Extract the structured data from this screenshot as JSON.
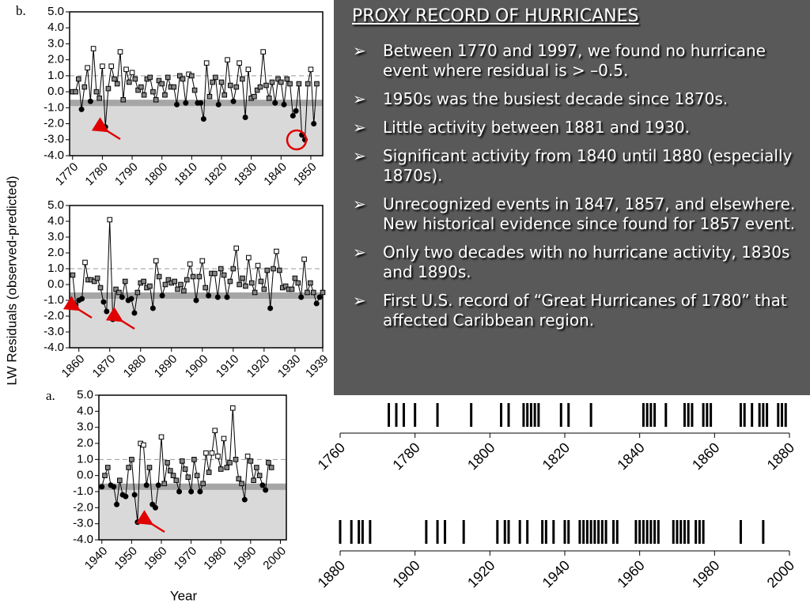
{
  "ylabel": "LW Residuals (observed-predicted)",
  "slide": {
    "title": "PROXY RECORD OF HURRICANES",
    "bullets": [
      "Between 1770 and 1997, we found no hurricane event where residual is > –0.5.",
      "1950s was the busiest decade since 1870s.",
      "Little activity between 1881 and 1930.",
      "Significant activity from 1840 until 1880 (especially 1870s).",
      "Unrecognized events in 1847, 1857, and elsewhere. New historical evidence since found for 1857 event.",
      "Only two decades with no hurricane activity, 1830s and 1890s.",
      "First U.S. record of “Great Hurricanes of 1780” that affected Caribbean region."
    ]
  },
  "chart_data": [
    {
      "type": "line",
      "panel_label": "b.",
      "color": "#000000",
      "shaded_below": -0.5,
      "reference_line": 1,
      "x": [
        1770,
        1771,
        1772,
        1773,
        1774,
        1775,
        1776,
        1777,
        1778,
        1779,
        1780,
        1781,
        1782,
        1783,
        1784,
        1785,
        1786,
        1787,
        1788,
        1789,
        1790,
        1791,
        1792,
        1793,
        1794,
        1795,
        1796,
        1797,
        1798,
        1799,
        1800,
        1801,
        1802,
        1803,
        1804,
        1805,
        1806,
        1807,
        1808,
        1809,
        1810,
        1811,
        1812,
        1813,
        1814,
        1815,
        1816,
        1817,
        1818,
        1819,
        1820,
        1821,
        1822,
        1823,
        1824,
        1825,
        1826,
        1827,
        1828,
        1829,
        1830,
        1831,
        1832,
        1833,
        1834,
        1835,
        1836,
        1837,
        1838,
        1839,
        1840,
        1841,
        1842,
        1843,
        1844,
        1845,
        1846,
        1847,
        1848,
        1849,
        1850,
        1851,
        1852
      ],
      "values": [
        0.0,
        0.0,
        0.8,
        -1.1,
        0.3,
        1.5,
        -0.6,
        2.7,
        0.0,
        -0.4,
        1.6,
        -2.2,
        0.2,
        1.6,
        0.8,
        0.5,
        2.5,
        -0.5,
        1.4,
        0.6,
        1.2,
        0.8,
        0.1,
        0.3,
        -0.2,
        0.8,
        0.9,
        0.0,
        -0.5,
        0.7,
        0.5,
        -0.2,
        0.9,
        0.3,
        0.3,
        -0.8,
        1.0,
        0.8,
        -0.7,
        1.1,
        1.0,
        0.1,
        -0.7,
        -0.7,
        -1.7,
        1.8,
        -0.3,
        0.6,
        0.9,
        -0.8,
        0.6,
        -0.2,
        2.0,
        0.4,
        -0.6,
        0.3,
        1.8,
        0.8,
        -1.6,
        1.4,
        -0.4,
        -0.3,
        0.1,
        0.3,
        2.5,
        0.4,
        -0.4,
        0.6,
        -0.7,
        0.8,
        0.6,
        -0.8,
        0.8,
        0.5,
        -1.5,
        -1.2,
        0.5,
        -2.7,
        -3.0,
        0.5,
        1.4,
        -2.0,
        0.5
      ],
      "xlim": [
        1769,
        1854
      ],
      "ylim": [
        -4,
        5
      ],
      "xticks": [
        1770,
        1780,
        1790,
        1800,
        1810,
        1820,
        1830,
        1840,
        1850
      ],
      "yticks": [
        {
          "value": 5,
          "label": "5.0"
        },
        {
          "value": 4,
          "label": "4.0"
        },
        {
          "value": 3,
          "label": "3.0"
        },
        {
          "value": 2,
          "label": "2.0"
        },
        {
          "value": 1,
          "label": "1.0"
        },
        {
          "value": 0,
          "label": "0.0"
        },
        {
          "value": -1,
          "label": "-1.0"
        },
        {
          "value": -2,
          "label": "-2.0"
        },
        {
          "value": -3,
          "label": "-3.0"
        },
        {
          "value": -4,
          "label": "-4.0"
        }
      ]
    },
    {
      "type": "line",
      "color": "#000000",
      "shaded_below": -0.5,
      "reference_line": 1,
      "x": [
        1858,
        1859,
        1860,
        1861,
        1862,
        1863,
        1864,
        1865,
        1866,
        1867,
        1868,
        1869,
        1870,
        1871,
        1872,
        1873,
        1874,
        1875,
        1876,
        1877,
        1878,
        1879,
        1880,
        1881,
        1882,
        1883,
        1884,
        1885,
        1886,
        1887,
        1888,
        1889,
        1890,
        1891,
        1892,
        1893,
        1894,
        1895,
        1896,
        1897,
        1898,
        1899,
        1900,
        1901,
        1902,
        1903,
        1904,
        1905,
        1906,
        1907,
        1908,
        1909,
        1910,
        1911,
        1912,
        1913,
        1914,
        1915,
        1916,
        1917,
        1918,
        1919,
        1920,
        1921,
        1922,
        1923,
        1924,
        1925,
        1926,
        1927,
        1928,
        1929,
        1930,
        1931,
        1932,
        1933,
        1934,
        1935,
        1936,
        1937,
        1938,
        1939
      ],
      "values": [
        0.6,
        -1.3,
        -1.0,
        -0.9,
        1.4,
        0.3,
        0.3,
        0.2,
        0.4,
        -0.2,
        -1.1,
        -1.7,
        4.1,
        -2.2,
        -0.3,
        -0.5,
        -0.8,
        0.2,
        -1.0,
        -0.9,
        -1.8,
        -0.5,
        0.1,
        0.2,
        -0.2,
        -0.1,
        -1.5,
        1.5,
        0.5,
        -0.7,
        0.0,
        0.3,
        0.1,
        0.2,
        -0.3,
        0.0,
        -0.4,
        0.3,
        1.3,
        0.5,
        -1.0,
        0.5,
        1.5,
        -0.2,
        -0.7,
        0.7,
        0.7,
        -0.8,
        1.0,
        0.6,
        -0.8,
        0.2,
        1.0,
        2.3,
        0.0,
        0.4,
        -0.1,
        1.7,
        0.1,
        -0.5,
        1.2,
        0.2,
        -0.3,
        0.9,
        -1.5,
        1.0,
        2.1,
        0.9,
        -0.2,
        -0.1,
        -0.3,
        -0.3,
        0.4,
        0.1,
        -0.8,
        1.6,
        -0.5,
        0.1,
        -0.5,
        -1.2,
        -0.8,
        -0.5
      ],
      "xlim": [
        1857,
        1939
      ],
      "ylim": [
        -4,
        5
      ],
      "xticks": [
        1860,
        1870,
        1880,
        1890,
        1900,
        1910,
        1920,
        1930,
        1939
      ],
      "yticks": [
        {
          "value": 5,
          "label": "5.0"
        },
        {
          "value": 4,
          "label": "4.0"
        },
        {
          "value": 3,
          "label": "3.0"
        },
        {
          "value": 2,
          "label": "2.0"
        },
        {
          "value": 1,
          "label": "1.0"
        },
        {
          "value": 0,
          "label": "0.0"
        },
        {
          "value": -1,
          "label": "-1.0"
        },
        {
          "value": -2,
          "label": "-2.0"
        },
        {
          "value": -3,
          "label": "-3.0"
        },
        {
          "value": -4,
          "label": "-4.0"
        }
      ]
    },
    {
      "type": "line",
      "panel_label": "a.",
      "xlabel": "Year",
      "color": "#000000",
      "shaded_below": -0.5,
      "reference_line": 1,
      "x": [
        1940,
        1941,
        1942,
        1943,
        1944,
        1945,
        1946,
        1947,
        1948,
        1949,
        1950,
        1951,
        1952,
        1953,
        1954,
        1955,
        1956,
        1957,
        1958,
        1959,
        1960,
        1961,
        1962,
        1963,
        1964,
        1965,
        1966,
        1967,
        1968,
        1969,
        1970,
        1971,
        1972,
        1973,
        1974,
        1975,
        1976,
        1977,
        1978,
        1979,
        1980,
        1981,
        1982,
        1983,
        1984,
        1985,
        1986,
        1987,
        1988,
        1989,
        1990,
        1991,
        1992,
        1993,
        1994,
        1995,
        1996,
        1997
      ],
      "values": [
        -0.7,
        0.0,
        0.5,
        -0.6,
        -0.7,
        -1.8,
        -0.3,
        -1.2,
        -1.3,
        0.5,
        1.0,
        -1.2,
        -2.9,
        2.0,
        1.9,
        -0.6,
        0.5,
        -1.8,
        -2.0,
        -0.6,
        2.4,
        -0.5,
        0.8,
        0.3,
        0.0,
        -0.3,
        -1.0,
        0.9,
        0.4,
        -0.1,
        -1.0,
        1.0,
        0.0,
        -1.0,
        -0.5,
        1.4,
        0.2,
        1.4,
        2.8,
        1.2,
        0.4,
        2.3,
        0.5,
        0.8,
        4.2,
        1.0,
        -0.2,
        -0.5,
        -1.5,
        1.2,
        0.9,
        -0.3,
        0.5,
        0.0,
        -0.6,
        -0.9,
        0.8,
        0.5
      ],
      "xlim": [
        1939,
        2002
      ],
      "ylim": [
        -4,
        5
      ],
      "xticks": [
        1940,
        1950,
        1960,
        1970,
        1980,
        1990,
        2000
      ],
      "yticks": [
        {
          "value": 5,
          "label": "5.0"
        },
        {
          "value": 4,
          "label": "4.0"
        },
        {
          "value": 3,
          "label": "3.0"
        },
        {
          "value": 2,
          "label": "2.0"
        },
        {
          "value": 1,
          "label": "1.0"
        },
        {
          "value": 0,
          "label": "0.0"
        },
        {
          "value": -1,
          "label": "-1.0"
        },
        {
          "value": -2,
          "label": "-2.0"
        },
        {
          "value": -3,
          "label": "-3.0"
        },
        {
          "value": -4,
          "label": "-4.0"
        }
      ]
    },
    {
      "type": "timeline",
      "color": "#000000",
      "x": [
        1773,
        1775,
        1777,
        1780,
        1786,
        1795,
        1803,
        1805,
        1809,
        1810,
        1811,
        1812,
        1813,
        1819,
        1821,
        1827,
        1841,
        1842,
        1843,
        1844,
        1847,
        1852,
        1853,
        1854,
        1857,
        1858,
        1859,
        1867,
        1868,
        1870,
        1872,
        1873,
        1874,
        1877,
        1878,
        1879
      ],
      "xlim": [
        1760,
        1880
      ],
      "xticks": [
        1760,
        1780,
        1800,
        1820,
        1840,
        1860,
        1880
      ]
    },
    {
      "type": "timeline",
      "color": "#000000",
      "x": [
        1880,
        1883,
        1885,
        1886,
        1888,
        1903,
        1906,
        1908,
        1913,
        1922,
        1924,
        1925,
        1928,
        1930,
        1934,
        1935,
        1937,
        1940,
        1941,
        1944,
        1945,
        1946,
        1947,
        1948,
        1949,
        1950,
        1951,
        1953,
        1954,
        1959,
        1960,
        1961,
        1962,
        1963,
        1964,
        1965,
        1969,
        1970,
        1971,
        1972,
        1973,
        1975,
        1976,
        1977,
        1987,
        1993
      ],
      "xlim": [
        1880,
        2000
      ],
      "xticks": [
        1880,
        1900,
        1920,
        1940,
        1960,
        1980,
        2000
      ]
    }
  ]
}
